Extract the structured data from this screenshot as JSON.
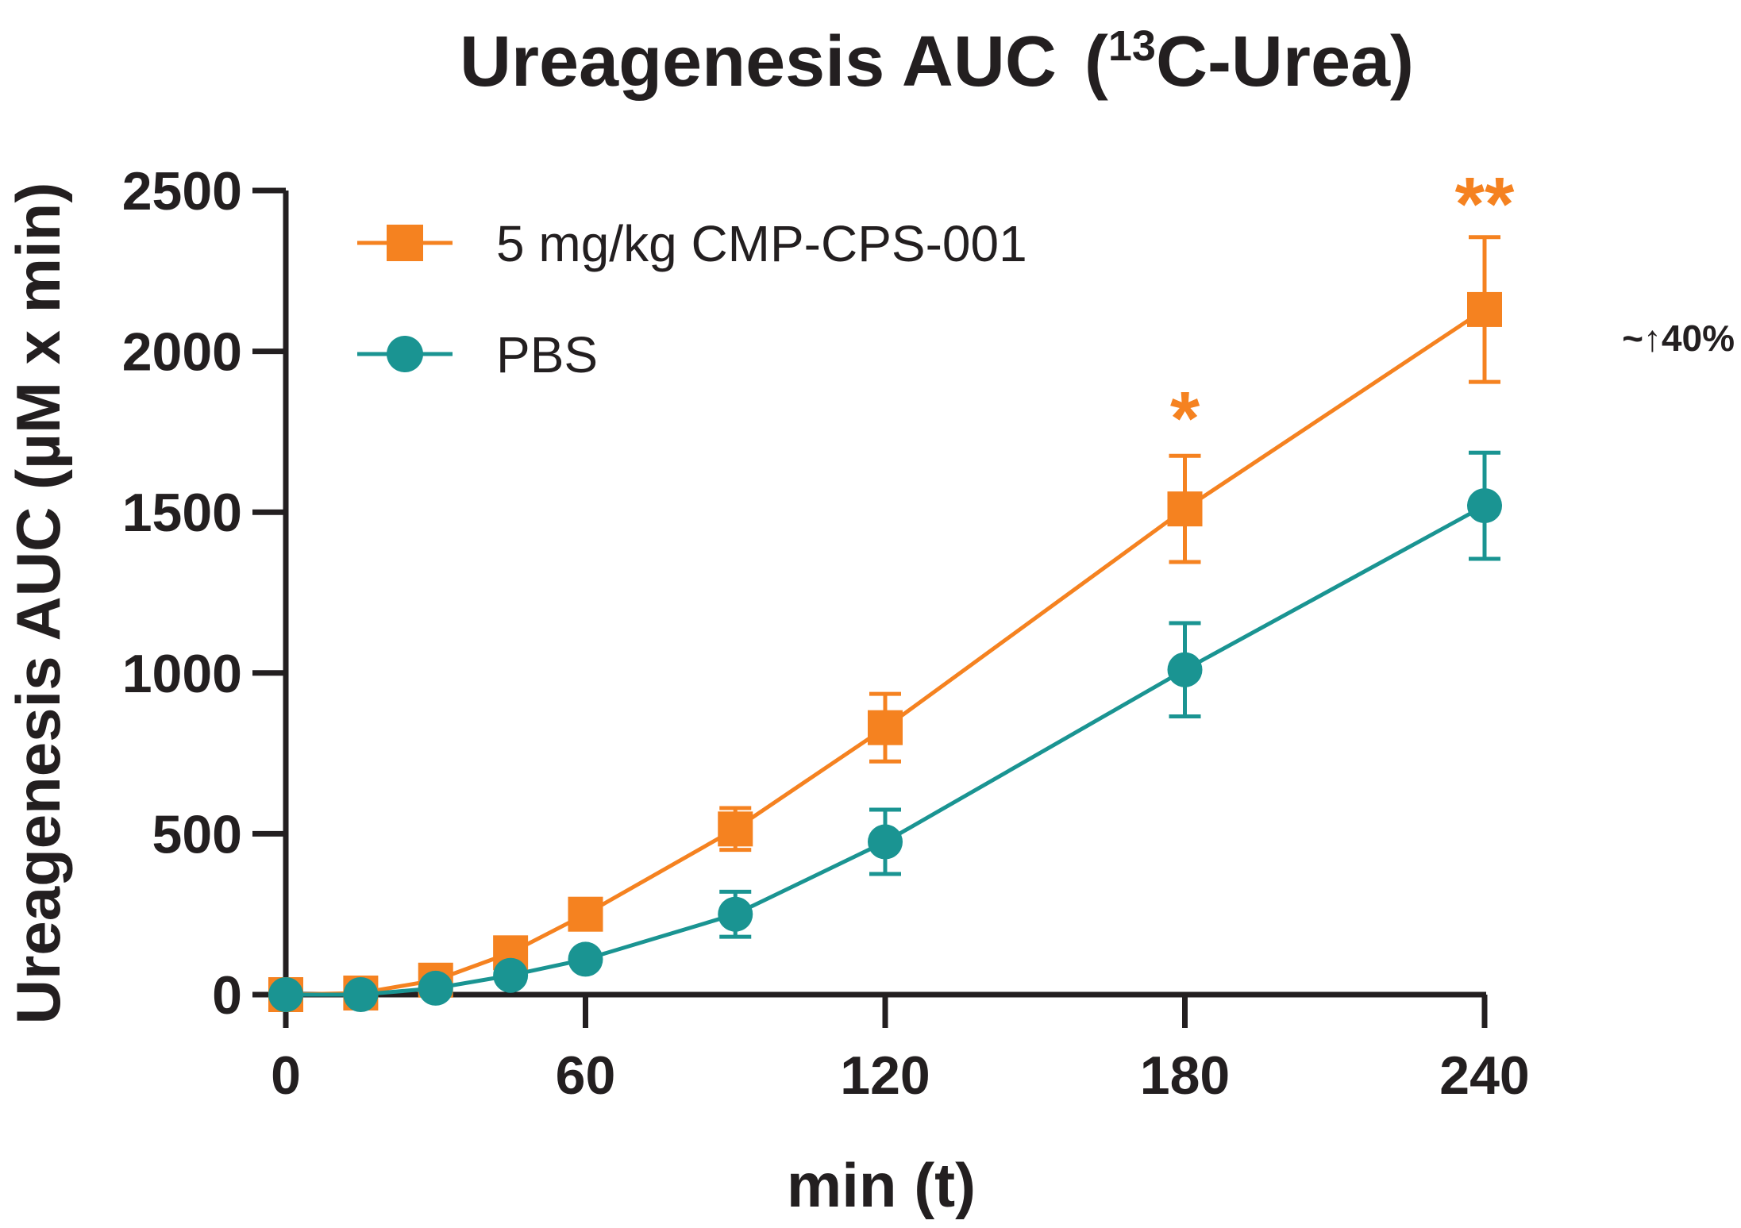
{
  "chart_data": {
    "type": "line",
    "title": "Ureagenesis AUC",
    "title_suffix_open": "(",
    "title_sup": "13",
    "title_suffix_rest": "C-Urea)",
    "xlabel": "min (t)",
    "ylabel": "Ureagenesis AUC  (µM x min)",
    "xlim": [
      0,
      240
    ],
    "ylim": [
      0,
      2500
    ],
    "xticks": [
      0,
      60,
      120,
      180,
      240
    ],
    "yticks": [
      0,
      500,
      1000,
      1500,
      2000,
      2500
    ],
    "grid": false,
    "legend_position": "top-left",
    "series": [
      {
        "name": "5 mg/kg CMP-CPS-001",
        "color": "#f58220",
        "marker": "square",
        "x": [
          0,
          15,
          30,
          45,
          60,
          90,
          120,
          180,
          240
        ],
        "y": [
          0,
          5,
          45,
          130,
          250,
          515,
          830,
          1510,
          2130
        ],
        "err": [
          0,
          0,
          0,
          0,
          0,
          65,
          105,
          165,
          225
        ]
      },
      {
        "name": "PBS",
        "color": "#1a9492",
        "marker": "circle",
        "x": [
          0,
          15,
          30,
          45,
          60,
          90,
          120,
          180,
          240
        ],
        "y": [
          0,
          0,
          20,
          60,
          110,
          250,
          475,
          1010,
          1520
        ],
        "err": [
          0,
          0,
          0,
          0,
          0,
          70,
          100,
          145,
          165
        ]
      }
    ],
    "annotations": [
      {
        "text": "*",
        "x": 180,
        "color": "#f58220"
      },
      {
        "text": "**",
        "x": 240,
        "color": "#f58220"
      },
      {
        "text": "~↑40%",
        "color": "#231f20"
      }
    ]
  }
}
